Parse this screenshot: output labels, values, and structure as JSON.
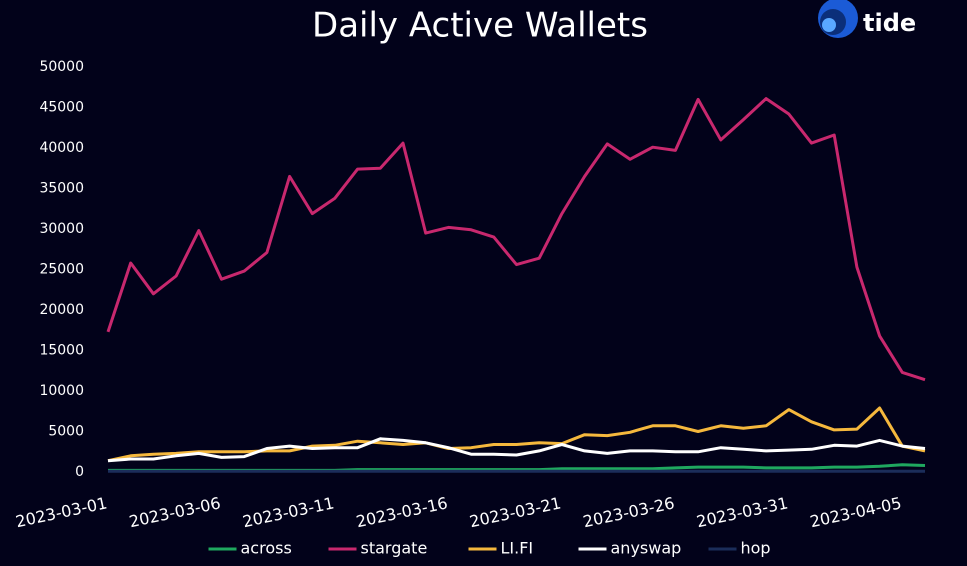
{
  "brand": "tide",
  "chart_data": {
    "type": "line",
    "title": "Daily Active Wallets",
    "x": [
      "2023-03-01",
      "2023-03-02",
      "2023-03-03",
      "2023-03-04",
      "2023-03-05",
      "2023-03-06",
      "2023-03-07",
      "2023-03-08",
      "2023-03-09",
      "2023-03-10",
      "2023-03-11",
      "2023-03-12",
      "2023-03-13",
      "2023-03-14",
      "2023-03-15",
      "2023-03-16",
      "2023-03-17",
      "2023-03-18",
      "2023-03-19",
      "2023-03-20",
      "2023-03-21",
      "2023-03-22",
      "2023-03-23",
      "2023-03-24",
      "2023-03-25",
      "2023-03-26",
      "2023-03-27",
      "2023-03-28",
      "2023-03-29",
      "2023-03-30",
      "2023-03-31",
      "2023-04-01",
      "2023-04-02",
      "2023-04-03",
      "2023-04-04",
      "2023-04-05",
      "2023-04-06"
    ],
    "xlim": [
      "2023-03-01",
      "2023-04-06"
    ],
    "xticks": [
      "2023-03-01",
      "2023-03-06",
      "2023-03-11",
      "2023-03-16",
      "2023-03-21",
      "2023-03-26",
      "2023-03-31",
      "2023-04-05"
    ],
    "ylim": [
      0,
      50000
    ],
    "yticks": [
      0,
      5000,
      10000,
      15000,
      20000,
      25000,
      30000,
      35000,
      40000,
      45000,
      50000
    ],
    "grid": false,
    "legend": "bottom",
    "series": [
      {
        "name": "across",
        "color": "#1fa85f",
        "values": [
          200,
          200,
          200,
          200,
          200,
          200,
          200,
          200,
          200,
          200,
          200,
          300,
          300,
          300,
          300,
          300,
          300,
          300,
          300,
          300,
          400,
          400,
          400,
          400,
          400,
          500,
          600,
          600,
          600,
          500,
          500,
          500,
          600,
          600,
          700,
          900,
          800
        ]
      },
      {
        "name": "stargate",
        "color": "#c8286e",
        "values": [
          17300,
          25800,
          22000,
          24200,
          29800,
          23800,
          24800,
          27100,
          36500,
          31900,
          33800,
          37400,
          37500,
          40600,
          29500,
          30200,
          29900,
          29000,
          25600,
          26400,
          31900,
          36500,
          40500,
          38600,
          40100,
          39700,
          46000,
          41000,
          43500,
          46100,
          44200,
          40600,
          41600,
          25300,
          16800,
          12300,
          11400
        ]
      },
      {
        "name": "LI.FI",
        "color": "#f5b83d",
        "values": [
          1400,
          2000,
          2200,
          2300,
          2500,
          2500,
          2500,
          2600,
          2600,
          3200,
          3300,
          3800,
          3600,
          3400,
          3600,
          2900,
          3000,
          3400,
          3400,
          3600,
          3500,
          4600,
          4500,
          4900,
          5700,
          5700,
          5000,
          5700,
          5400,
          5700,
          7700,
          6200,
          5200,
          5300,
          7900,
          3200,
          2600
        ]
      },
      {
        "name": "anyswap",
        "color": "#ffffff",
        "values": [
          1400,
          1600,
          1600,
          2000,
          2300,
          1800,
          1900,
          2900,
          3200,
          2900,
          3000,
          3000,
          4100,
          3900,
          3600,
          3000,
          2200,
          2200,
          2100,
          2600,
          3400,
          2600,
          2300,
          2600,
          2600,
          2500,
          2500,
          3000,
          2800,
          2600,
          2700,
          2800,
          3300,
          3200,
          3900,
          3200,
          2900
        ]
      },
      {
        "name": "hop",
        "color": "#1b2d5a",
        "values": [
          100,
          100,
          100,
          100,
          100,
          100,
          100,
          100,
          100,
          100,
          100,
          100,
          100,
          100,
          100,
          100,
          100,
          100,
          100,
          100,
          100,
          100,
          100,
          100,
          100,
          100,
          100,
          100,
          100,
          100,
          100,
          100,
          100,
          100,
          100,
          100,
          100
        ]
      }
    ]
  }
}
